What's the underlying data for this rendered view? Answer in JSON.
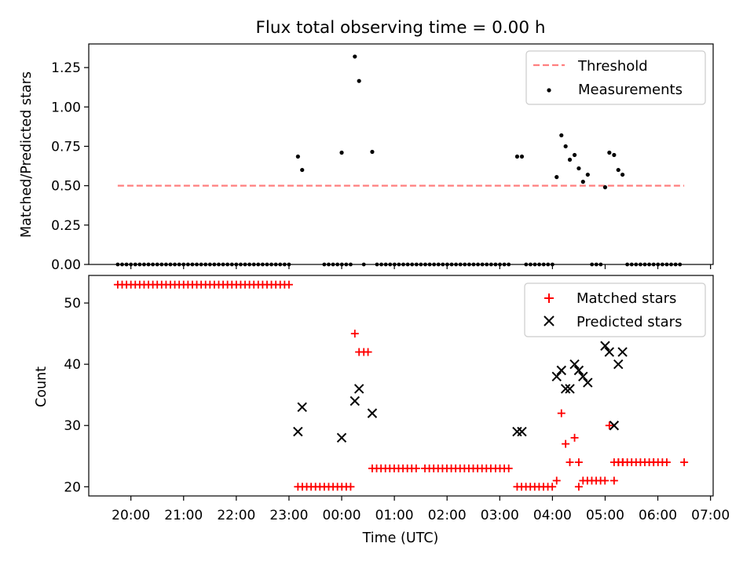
{
  "chart_data": [
    {
      "type": "scatter",
      "title": "Flux total observing time = 0.00 h",
      "xlabel": "",
      "ylabel": "Matched/Predicted stars",
      "ylim": [
        0,
        1.4
      ],
      "yticks": [
        0.0,
        0.25,
        0.5,
        0.75,
        1.0,
        1.25
      ],
      "ytick_labels": [
        "0.00",
        "0.25",
        "0.50",
        "0.75",
        "1.00",
        "1.25"
      ],
      "xlim_hours": [
        19.2,
        31.05
      ],
      "legend": "top-right",
      "threshold": {
        "name": "Threshold",
        "value": 0.5,
        "x_start": 19.75,
        "x_end": 30.5,
        "color": "#ff7f7f"
      },
      "series": [
        {
          "name": "Measurements",
          "color": "#000000",
          "points": [
            [
              23.17,
              0.685
            ],
            [
              23.25,
              0.6
            ],
            [
              24.0,
              0.71
            ],
            [
              24.25,
              1.32
            ],
            [
              24.33,
              1.165
            ],
            [
              24.58,
              0.715
            ],
            [
              27.33,
              0.685
            ],
            [
              27.42,
              0.685
            ],
            [
              28.08,
              0.555
            ],
            [
              28.17,
              0.82
            ],
            [
              28.25,
              0.75
            ],
            [
              28.33,
              0.665
            ],
            [
              28.42,
              0.695
            ],
            [
              28.5,
              0.61
            ],
            [
              28.58,
              0.525
            ],
            [
              28.67,
              0.57
            ],
            [
              29.0,
              0.49
            ],
            [
              29.08,
              0.71
            ],
            [
              29.17,
              0.695
            ],
            [
              29.25,
              0.6
            ],
            [
              29.33,
              0.57
            ]
          ],
          "zero_ranges": [
            [
              19.75,
              23.08
            ],
            [
              23.67,
              24.17
            ],
            [
              24.42,
              24.5
            ],
            [
              24.67,
              27.17
            ],
            [
              27.5,
              28.0
            ],
            [
              28.75,
              28.92
            ],
            [
              29.42,
              30.5
            ]
          ]
        }
      ]
    },
    {
      "type": "scatter",
      "title": "",
      "xlabel": "Time (UTC)",
      "ylabel": "Count",
      "ylim": [
        18.5,
        54.5
      ],
      "yticks": [
        20,
        30,
        40,
        50
      ],
      "ytick_labels": [
        "20",
        "30",
        "40",
        "50"
      ],
      "xticks_hours": [
        20,
        21,
        22,
        23,
        24,
        25,
        26,
        27,
        28,
        29,
        30,
        31
      ],
      "xtick_labels": [
        "20:00",
        "21:00",
        "22:00",
        "23:00",
        "00:00",
        "01:00",
        "02:00",
        "03:00",
        "04:00",
        "05:00",
        "06:00",
        "07:00"
      ],
      "legend": "top-right",
      "series": [
        {
          "name": "Matched stars",
          "marker": "plus",
          "color": "#ff0000",
          "runs": [
            {
              "from": 19.75,
              "to": 23.08,
              "value": 53
            },
            {
              "from": 23.17,
              "to": 24.17,
              "value": 20
            },
            {
              "from": 24.58,
              "to": 25.42,
              "value": 23
            },
            {
              "from": 25.58,
              "to": 26.83,
              "value": 23
            },
            {
              "from": 26.92,
              "to": 27.25,
              "value": 23
            },
            {
              "from": 27.33,
              "to": 28.0,
              "value": 20
            },
            {
              "from": 28.58,
              "to": 29.0,
              "value": 21
            },
            {
              "from": 29.17,
              "to": 29.92,
              "value": 24
            },
            {
              "from": 29.92,
              "to": 30.25,
              "value": 24
            }
          ],
          "points": [
            [
              24.25,
              45
            ],
            [
              24.33,
              42
            ],
            [
              24.42,
              42
            ],
            [
              24.5,
              42
            ],
            [
              28.08,
              21
            ],
            [
              28.17,
              32
            ],
            [
              28.25,
              27
            ],
            [
              28.33,
              24
            ],
            [
              28.42,
              28
            ],
            [
              28.5,
              24
            ],
            [
              28.5,
              20
            ],
            [
              29.08,
              30
            ],
            [
              29.17,
              21
            ],
            [
              29.25,
              24
            ],
            [
              29.33,
              24
            ],
            [
              30.5,
              24
            ]
          ]
        },
        {
          "name": "Predicted stars",
          "marker": "x",
          "color": "#000000",
          "points": [
            [
              23.17,
              29
            ],
            [
              23.25,
              33
            ],
            [
              24.0,
              28
            ],
            [
              24.25,
              34
            ],
            [
              24.33,
              36
            ],
            [
              24.58,
              32
            ],
            [
              27.33,
              29
            ],
            [
              27.42,
              29
            ],
            [
              28.08,
              38
            ],
            [
              28.17,
              39
            ],
            [
              28.25,
              36
            ],
            [
              28.33,
              36
            ],
            [
              28.42,
              40
            ],
            [
              28.5,
              39
            ],
            [
              28.58,
              38
            ],
            [
              28.67,
              37
            ],
            [
              29.0,
              43
            ],
            [
              29.08,
              42
            ],
            [
              29.17,
              30
            ],
            [
              29.25,
              40
            ],
            [
              29.33,
              42
            ]
          ]
        }
      ]
    }
  ]
}
